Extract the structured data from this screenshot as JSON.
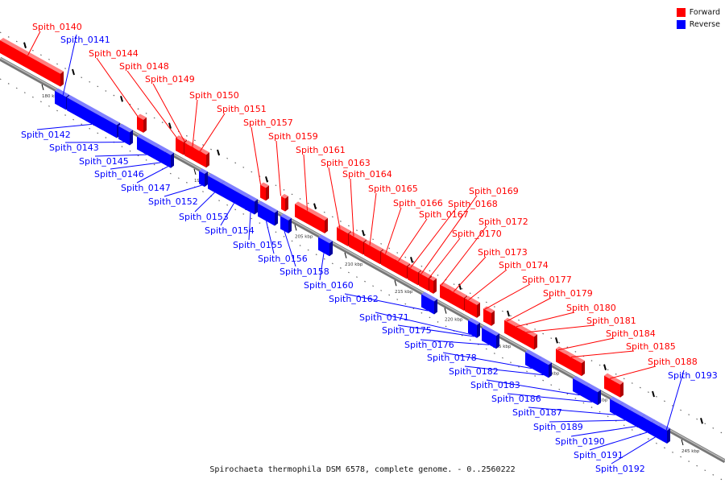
{
  "legend": {
    "forward_label": "Forward",
    "reverse_label": "Reverse",
    "forward_color": "#ff0000",
    "reverse_color": "#0000ff"
  },
  "caption": "Spirochaeta thermophila DSM 6578, complete genome. - 0..2560222",
  "scale_ticks": [
    "180 kbp",
    "185 kbp",
    "190 kbp",
    "195 kbp",
    "200 kbp",
    "205 kbp",
    "210 kbp",
    "215 kbp",
    "220 kbp",
    "225 kbp",
    "230 kbp",
    "235 kbp",
    "240 kbp",
    "245 kbp"
  ],
  "forward_genes": [
    "Spith_0140",
    "Spith_0144",
    "Spith_0148",
    "Spith_0149",
    "Spith_0150",
    "Spith_0151",
    "Spith_0157",
    "Spith_0159",
    "Spith_0161",
    "Spith_0163",
    "Spith_0164",
    "Spith_0165",
    "Spith_0166",
    "Spith_0167",
    "Spith_0168",
    "Spith_0169",
    "Spith_0170",
    "Spith_0172",
    "Spith_0173",
    "Spith_0174",
    "Spith_0177",
    "Spith_0179",
    "Spith_0180",
    "Spith_0181",
    "Spith_0184",
    "Spith_0185",
    "Spith_0188"
  ],
  "reverse_genes": [
    "Spith_0141",
    "Spith_0142",
    "Spith_0143",
    "Spith_0145",
    "Spith_0146",
    "Spith_0147",
    "Spith_0152",
    "Spith_0153",
    "Spith_0154",
    "Spith_0155",
    "Spith_0156",
    "Spith_0158",
    "Spith_0160",
    "Spith_0162",
    "Spith_0171",
    "Spith_0175",
    "Spith_0176",
    "Spith_0178",
    "Spith_0182",
    "Spith_0183",
    "Spith_0186",
    "Spith_0187",
    "Spith_0189",
    "Spith_0190",
    "Spith_0191",
    "Spith_0192",
    "Spith_0193"
  ]
}
